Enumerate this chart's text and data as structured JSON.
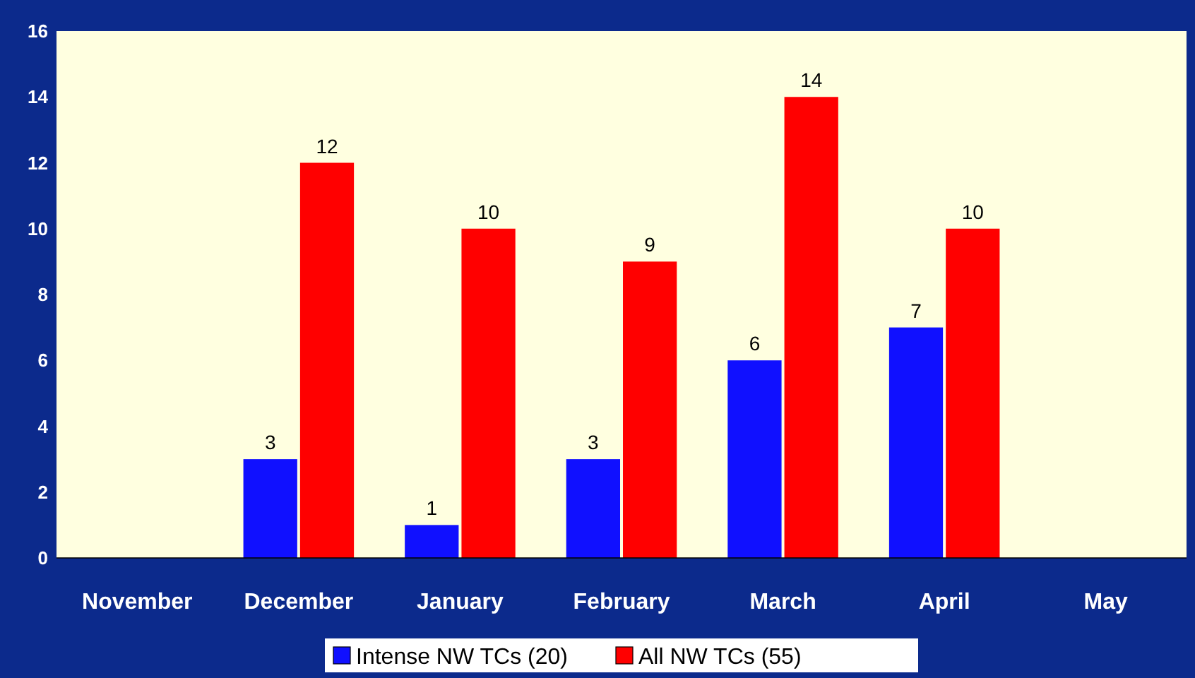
{
  "chart_data": {
    "type": "bar",
    "categories": [
      "November",
      "December",
      "January",
      "February",
      "March",
      "April",
      "May"
    ],
    "series": [
      {
        "name": "Intense NW TCs (20)",
        "color": "#1010ff",
        "values": [
          null,
          3,
          1,
          3,
          6,
          7,
          null
        ]
      },
      {
        "name": "All NW TCs (55)",
        "color": "#ff0000",
        "values": [
          null,
          12,
          10,
          9,
          14,
          10,
          null
        ]
      }
    ],
    "ylim": [
      0,
      16
    ],
    "yticks": [
      0,
      2,
      4,
      6,
      8,
      10,
      12,
      14,
      16
    ],
    "data_labels": true,
    "legend": "bottom",
    "grid": false
  }
}
